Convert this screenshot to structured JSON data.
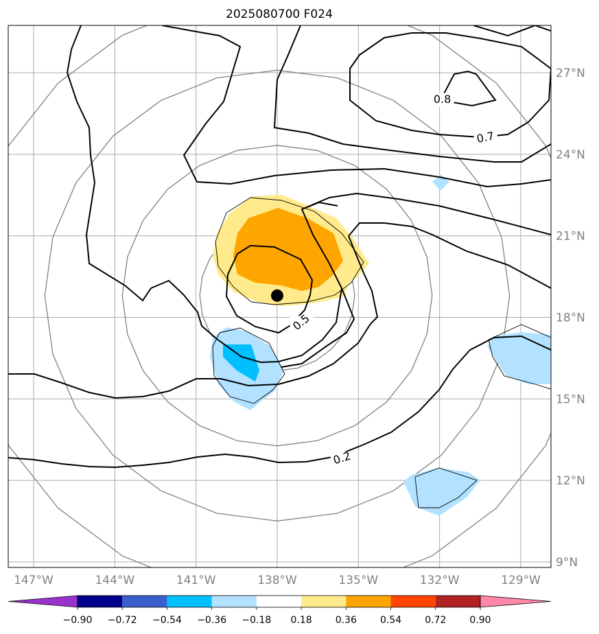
{
  "title": "2025080700 F024",
  "lon_ticks": [
    {
      "lon": -147,
      "label": "147°W"
    },
    {
      "lon": -144,
      "label": "144°W"
    },
    {
      "lon": -141,
      "label": "141°W"
    },
    {
      "lon": -138,
      "label": "138°W"
    },
    {
      "lon": -135,
      "label": "135°W"
    },
    {
      "lon": -132,
      "label": "132°W"
    },
    {
      "lon": -129,
      "label": "129°W"
    }
  ],
  "lat_ticks": [
    {
      "lat": 27,
      "label": "27°N"
    },
    {
      "lat": 24,
      "label": "24°N"
    },
    {
      "lat": 21,
      "label": "21°N"
    },
    {
      "lat": 18,
      "label": "18°N"
    },
    {
      "lat": 15,
      "label": "15°N"
    },
    {
      "lat": 12,
      "label": "12°N"
    },
    {
      "lat": 9,
      "label": "9°N"
    }
  ],
  "extent": {
    "lon_min": -148,
    "lon_max": -128,
    "lat_min": 8.8,
    "lat_max": 28.7
  },
  "storm_center": {
    "lon": -138,
    "lat": 18.8
  },
  "range_rings_deg": [
    3,
    6,
    9,
    12
  ],
  "contour_labels": [
    {
      "text": "0.8",
      "lon": -131.9,
      "lat": 26.0
    },
    {
      "text": "0.7",
      "lon": -130.3,
      "lat": 24.6
    },
    {
      "text": "0.5",
      "lon": -137.1,
      "lat": 17.8
    },
    {
      "text": "0.2",
      "lon": -135.6,
      "lat": 12.8
    }
  ],
  "colorbar": {
    "levels": [
      "−0.90",
      "−0.72",
      "−0.54",
      "−0.36",
      "−0.18",
      "0.18",
      "0.36",
      "0.54",
      "0.72",
      "0.90"
    ],
    "colors": [
      "#9932cc",
      "#00008b",
      "#3a5fcd",
      "#00bfff",
      "#b2e2ff",
      "#ffffff",
      "#ffeb8c",
      "#ffa500",
      "#ff4500",
      "#b22222",
      "#ff88aa"
    ]
  }
}
